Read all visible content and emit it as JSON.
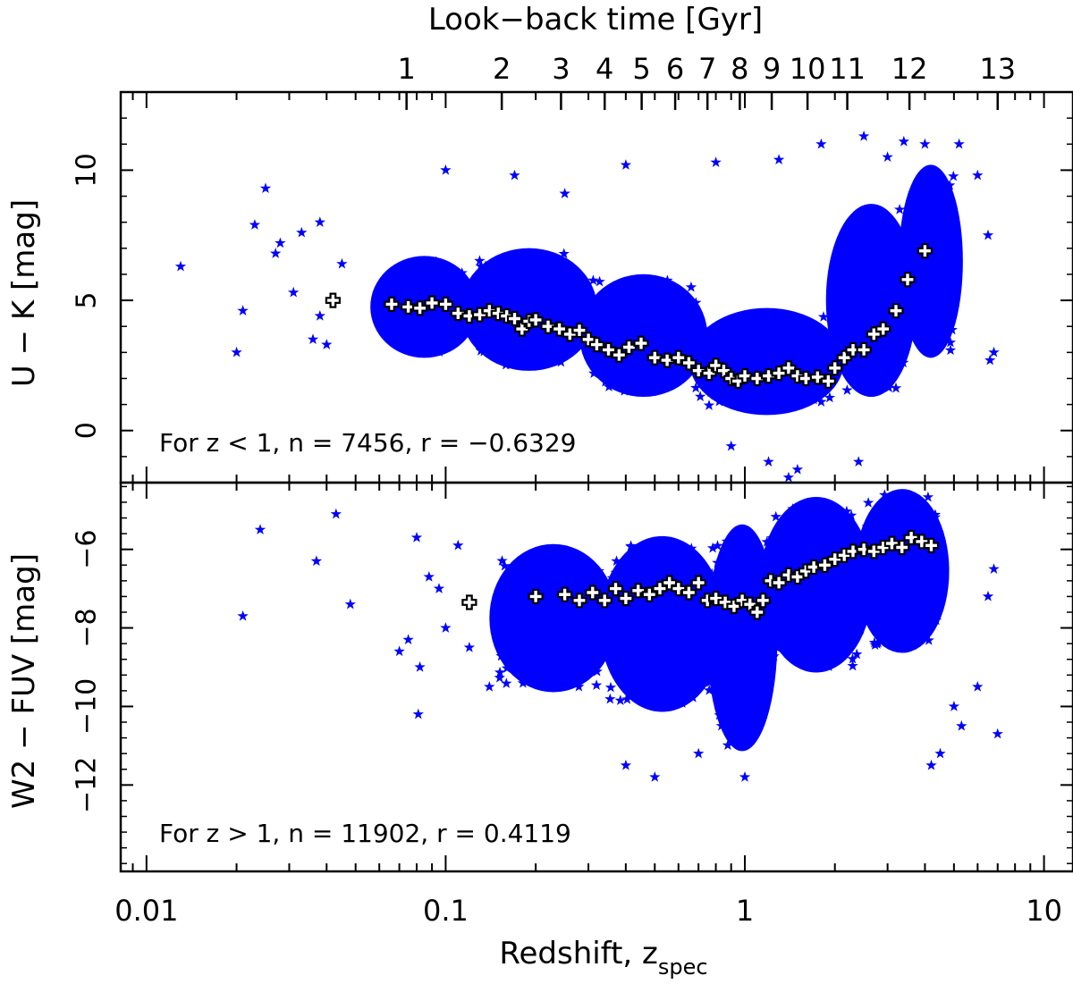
{
  "chart_data": [
    {
      "type": "scatter",
      "panel": "top",
      "ylabel": "U − K [mag]",
      "ylim": [
        -2,
        13
      ],
      "yticks": [
        0,
        5,
        10
      ],
      "yticklabels": [
        "0",
        "5",
        "10"
      ],
      "annotation": "For z < 1, n = 7456, r = −0.6329",
      "scatter_color": "#0000ff",
      "scatter_marker": "star",
      "median_marker": "white cross with black outline",
      "cloud": [
        {
          "z": [
            0.06,
            0.12
          ],
          "y": [
            3.0,
            6.5
          ]
        },
        {
          "z": [
            0.12,
            0.3
          ],
          "y": [
            2.5,
            6.8
          ]
        },
        {
          "z": [
            0.3,
            0.7
          ],
          "y": [
            1.5,
            5.8
          ]
        },
        {
          "z": [
            0.7,
            2.0
          ],
          "y": [
            0.8,
            4.5
          ]
        },
        {
          "z": [
            2.0,
            3.5
          ],
          "y": [
            1.5,
            8.5
          ]
        },
        {
          "z": [
            3.5,
            5.0
          ],
          "y": [
            3.0,
            10.0
          ]
        }
      ],
      "outliers": [
        {
          "z": 0.013,
          "y": 6.3
        },
        {
          "z": 0.02,
          "y": 3.0
        },
        {
          "z": 0.021,
          "y": 4.6
        },
        {
          "z": 0.023,
          "y": 7.9
        },
        {
          "z": 0.025,
          "y": 9.3
        },
        {
          "z": 0.027,
          "y": 6.8
        },
        {
          "z": 0.028,
          "y": 7.2
        },
        {
          "z": 0.031,
          "y": 5.3
        },
        {
          "z": 0.033,
          "y": 7.6
        },
        {
          "z": 0.036,
          "y": 3.5
        },
        {
          "z": 0.038,
          "y": 8.0
        },
        {
          "z": 0.038,
          "y": 4.4
        },
        {
          "z": 0.04,
          "y": 3.3
        },
        {
          "z": 0.045,
          "y": 6.4
        },
        {
          "z": 0.1,
          "y": 10.0
        },
        {
          "z": 0.17,
          "y": 9.8
        },
        {
          "z": 0.25,
          "y": 9.1
        },
        {
          "z": 0.4,
          "y": 10.2
        },
        {
          "z": 0.8,
          "y": 10.3
        },
        {
          "z": 1.3,
          "y": 10.4
        },
        {
          "z": 1.8,
          "y": 11.0
        },
        {
          "z": 2.5,
          "y": 11.3
        },
        {
          "z": 3.0,
          "y": 10.5
        },
        {
          "z": 3.4,
          "y": 11.1
        },
        {
          "z": 4.0,
          "y": 11.0
        },
        {
          "z": 5.2,
          "y": 11.0
        },
        {
          "z": 6.0,
          "y": 9.8
        },
        {
          "z": 6.5,
          "y": 7.5
        },
        {
          "z": 6.8,
          "y": 3.0
        },
        {
          "z": 6.6,
          "y": 2.7
        },
        {
          "z": 1.4,
          "y": -1.8
        },
        {
          "z": 1.5,
          "y": -1.5
        },
        {
          "z": 2.4,
          "y": -1.2
        },
        {
          "z": 1.2,
          "y": -1.2
        },
        {
          "z": 0.9,
          "y": -0.6
        }
      ],
      "medians": [
        {
          "z": 0.042,
          "y": 5.0
        },
        {
          "z": 0.066,
          "y": 4.85
        },
        {
          "z": 0.075,
          "y": 4.75
        },
        {
          "z": 0.082,
          "y": 4.7
        },
        {
          "z": 0.09,
          "y": 4.9
        },
        {
          "z": 0.1,
          "y": 4.85
        },
        {
          "z": 0.11,
          "y": 4.5
        },
        {
          "z": 0.12,
          "y": 4.4
        },
        {
          "z": 0.13,
          "y": 4.45
        },
        {
          "z": 0.14,
          "y": 4.6
        },
        {
          "z": 0.15,
          "y": 4.5
        },
        {
          "z": 0.16,
          "y": 4.4
        },
        {
          "z": 0.17,
          "y": 4.3
        },
        {
          "z": 0.18,
          "y": 3.9
        },
        {
          "z": 0.19,
          "y": 4.2
        },
        {
          "z": 0.2,
          "y": 4.25
        },
        {
          "z": 0.22,
          "y": 4.0
        },
        {
          "z": 0.24,
          "y": 3.9
        },
        {
          "z": 0.26,
          "y": 3.7
        },
        {
          "z": 0.28,
          "y": 3.85
        },
        {
          "z": 0.3,
          "y": 3.5
        },
        {
          "z": 0.32,
          "y": 3.3
        },
        {
          "z": 0.35,
          "y": 3.1
        },
        {
          "z": 0.38,
          "y": 2.9
        },
        {
          "z": 0.41,
          "y": 3.2
        },
        {
          "z": 0.45,
          "y": 3.35
        },
        {
          "z": 0.5,
          "y": 2.8
        },
        {
          "z": 0.55,
          "y": 2.7
        },
        {
          "z": 0.6,
          "y": 2.8
        },
        {
          "z": 0.65,
          "y": 2.6
        },
        {
          "z": 0.7,
          "y": 2.3
        },
        {
          "z": 0.76,
          "y": 2.2
        },
        {
          "z": 0.8,
          "y": 2.5
        },
        {
          "z": 0.85,
          "y": 2.3
        },
        {
          "z": 0.9,
          "y": 2.0
        },
        {
          "z": 0.95,
          "y": 1.9
        },
        {
          "z": 1.0,
          "y": 2.1
        },
        {
          "z": 1.1,
          "y": 2.0
        },
        {
          "z": 1.2,
          "y": 2.1
        },
        {
          "z": 1.3,
          "y": 2.2
        },
        {
          "z": 1.4,
          "y": 2.4
        },
        {
          "z": 1.5,
          "y": 2.1
        },
        {
          "z": 1.6,
          "y": 2.0
        },
        {
          "z": 1.75,
          "y": 2.05
        },
        {
          "z": 1.9,
          "y": 1.9
        },
        {
          "z": 2.0,
          "y": 2.4
        },
        {
          "z": 2.15,
          "y": 2.8
        },
        {
          "z": 2.3,
          "y": 3.1
        },
        {
          "z": 2.5,
          "y": 3.1
        },
        {
          "z": 2.7,
          "y": 3.7
        },
        {
          "z": 2.9,
          "y": 3.9
        },
        {
          "z": 3.2,
          "y": 4.6
        },
        {
          "z": 3.5,
          "y": 5.8
        },
        {
          "z": 4.0,
          "y": 6.9
        }
      ]
    },
    {
      "type": "scatter",
      "panel": "bottom",
      "ylabel": "W2 − FUV [mag]",
      "ylim": [
        -14.2,
        -4.3
      ],
      "yticks": [
        -12,
        -10,
        -8,
        -6
      ],
      "yticklabels": [
        "−12",
        "−10",
        "−8",
        "−6"
      ],
      "annotation": "For z > 1, n = 11902, r = 0.4119",
      "scatter_color": "#0000ff",
      "scatter_marker": "star",
      "median_marker": "white cross with black outline",
      "cloud": [
        {
          "z": [
            0.15,
            0.35
          ],
          "y": [
            -9.5,
            -6.0
          ]
        },
        {
          "z": [
            0.35,
            0.8
          ],
          "y": [
            -10.0,
            -5.8
          ]
        },
        {
          "z": [
            0.8,
            1.2
          ],
          "y": [
            -11.0,
            -5.5
          ]
        },
        {
          "z": [
            1.2,
            2.5
          ],
          "y": [
            -9.0,
            -4.8
          ]
        },
        {
          "z": [
            2.5,
            4.5
          ],
          "y": [
            -8.5,
            -4.6
          ]
        }
      ],
      "outliers": [
        {
          "z": 0.021,
          "y": -7.7
        },
        {
          "z": 0.024,
          "y": -5.5
        },
        {
          "z": 0.037,
          "y": -6.3
        },
        {
          "z": 0.043,
          "y": -5.1
        },
        {
          "z": 0.048,
          "y": -7.4
        },
        {
          "z": 0.07,
          "y": -8.6
        },
        {
          "z": 0.075,
          "y": -8.3
        },
        {
          "z": 0.08,
          "y": -5.7
        },
        {
          "z": 0.082,
          "y": -9.0
        },
        {
          "z": 0.081,
          "y": -10.2
        },
        {
          "z": 0.088,
          "y": -6.7
        },
        {
          "z": 0.095,
          "y": -7.0
        },
        {
          "z": 0.1,
          "y": -8.0
        },
        {
          "z": 0.11,
          "y": -5.9
        },
        {
          "z": 0.12,
          "y": -8.5
        },
        {
          "z": 0.14,
          "y": -9.5
        },
        {
          "z": 0.4,
          "y": -11.5
        },
        {
          "z": 0.5,
          "y": -11.8
        },
        {
          "z": 1.0,
          "y": -11.8
        },
        {
          "z": 0.7,
          "y": -11.2
        },
        {
          "z": 5.0,
          "y": -10.0
        },
        {
          "z": 5.3,
          "y": -10.5
        },
        {
          "z": 6.0,
          "y": -9.5
        },
        {
          "z": 6.5,
          "y": -7.2
        },
        {
          "z": 6.8,
          "y": -6.5
        },
        {
          "z": 7.0,
          "y": -10.7
        },
        {
          "z": 4.5,
          "y": -11.2
        },
        {
          "z": 4.2,
          "y": -11.5
        }
      ],
      "medians": [
        {
          "z": 0.12,
          "y": -7.35
        },
        {
          "z": 0.2,
          "y": -7.2
        },
        {
          "z": 0.25,
          "y": -7.15
        },
        {
          "z": 0.28,
          "y": -7.3
        },
        {
          "z": 0.31,
          "y": -7.1
        },
        {
          "z": 0.34,
          "y": -7.3
        },
        {
          "z": 0.37,
          "y": -7.0
        },
        {
          "z": 0.4,
          "y": -7.25
        },
        {
          "z": 0.44,
          "y": -7.05
        },
        {
          "z": 0.48,
          "y": -7.15
        },
        {
          "z": 0.52,
          "y": -7.0
        },
        {
          "z": 0.56,
          "y": -6.85
        },
        {
          "z": 0.6,
          "y": -7.0
        },
        {
          "z": 0.65,
          "y": -7.1
        },
        {
          "z": 0.7,
          "y": -6.85
        },
        {
          "z": 0.75,
          "y": -7.3
        },
        {
          "z": 0.8,
          "y": -7.25
        },
        {
          "z": 0.86,
          "y": -7.35
        },
        {
          "z": 0.92,
          "y": -7.45
        },
        {
          "z": 0.98,
          "y": -7.3
        },
        {
          "z": 1.04,
          "y": -7.4
        },
        {
          "z": 1.1,
          "y": -7.6
        },
        {
          "z": 1.15,
          "y": -7.3
        },
        {
          "z": 1.22,
          "y": -6.8
        },
        {
          "z": 1.3,
          "y": -6.85
        },
        {
          "z": 1.4,
          "y": -6.65
        },
        {
          "z": 1.5,
          "y": -6.7
        },
        {
          "z": 1.6,
          "y": -6.55
        },
        {
          "z": 1.7,
          "y": -6.45
        },
        {
          "z": 1.85,
          "y": -6.4
        },
        {
          "z": 2.0,
          "y": -6.25
        },
        {
          "z": 2.15,
          "y": -6.15
        },
        {
          "z": 2.3,
          "y": -6.05
        },
        {
          "z": 2.5,
          "y": -6.0
        },
        {
          "z": 2.7,
          "y": -6.05
        },
        {
          "z": 2.9,
          "y": -5.95
        },
        {
          "z": 3.1,
          "y": -5.85
        },
        {
          "z": 3.35,
          "y": -5.95
        },
        {
          "z": 3.6,
          "y": -5.7
        },
        {
          "z": 3.9,
          "y": -5.8
        },
        {
          "z": 4.2,
          "y": -5.9
        }
      ]
    }
  ],
  "x_axis": {
    "label": "Redshift, z",
    "label_subscript": "spec",
    "scale": "log",
    "xlim": [
      0.0082,
      12.5
    ],
    "ticks": [
      0.01,
      0.1,
      1,
      10
    ],
    "ticklabels": [
      "0.01",
      "0.1",
      "1",
      "10"
    ]
  },
  "top_axis": {
    "label": "Look−back time [Gyr]",
    "ticks": [
      {
        "label": "1",
        "z": 0.074
      },
      {
        "label": "2",
        "z": 0.154
      },
      {
        "label": "3",
        "z": 0.243
      },
      {
        "label": "4",
        "z": 0.34
      },
      {
        "label": "5",
        "z": 0.452
      },
      {
        "label": "6",
        "z": 0.585
      },
      {
        "label": "7",
        "z": 0.75
      },
      {
        "label": "8",
        "z": 0.962
      },
      {
        "label": "9",
        "z": 1.23
      },
      {
        "label": "10",
        "z": 1.62
      },
      {
        "label": "11",
        "z": 2.2
      },
      {
        "label": "12",
        "z": 3.55
      },
      {
        "label": "13",
        "z": 7.0
      }
    ]
  }
}
